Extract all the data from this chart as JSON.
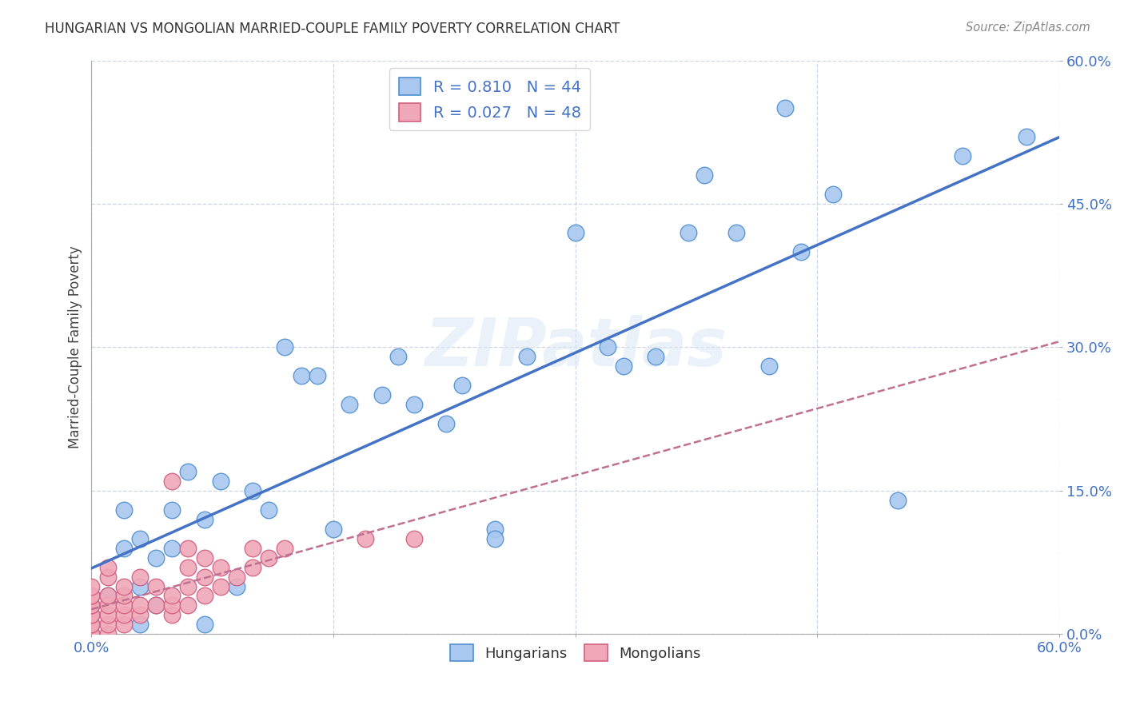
{
  "title": "HUNGARIAN VS MONGOLIAN MARRIED-COUPLE FAMILY POVERTY CORRELATION CHART",
  "source": "Source: ZipAtlas.com",
  "ylabel": "Married-Couple Family Poverty",
  "xlim": [
    0,
    0.6
  ],
  "ylim": [
    0,
    0.6
  ],
  "xtick_vals": [
    0.0,
    0.15,
    0.3,
    0.45,
    0.6
  ],
  "xtick_labels_bottom": [
    "0.0%",
    "",
    "",
    "",
    "60.0%"
  ],
  "ytick_vals": [
    0.0,
    0.15,
    0.3,
    0.45,
    0.6
  ],
  "ytick_labels_right": [
    "0.0%",
    "15.0%",
    "30.0%",
    "45.0%",
    "60.0%"
  ],
  "hungarian_color": "#a8c8f0",
  "mongolian_color": "#f0a8b8",
  "hungarian_edge": "#5090d0",
  "mongolian_edge": "#d06080",
  "line_hungarian_color": "#4472c4",
  "line_mongolian_color": "#c07090",
  "R_hungarian": 0.81,
  "N_hungarian": 44,
  "R_mongolian": 0.027,
  "N_mongolian": 48,
  "watermark": "ZIPatlas",
  "background_color": "#ffffff",
  "hungarian_x": [
    0.01,
    0.02,
    0.02,
    0.03,
    0.03,
    0.04,
    0.04,
    0.05,
    0.05,
    0.06,
    0.07,
    0.08,
    0.09,
    0.1,
    0.11,
    0.12,
    0.13,
    0.14,
    0.15,
    0.16,
    0.18,
    0.19,
    0.2,
    0.22,
    0.23,
    0.25,
    0.25,
    0.27,
    0.3,
    0.32,
    0.33,
    0.35,
    0.37,
    0.38,
    0.4,
    0.42,
    0.43,
    0.44,
    0.46,
    0.5,
    0.54,
    0.58,
    0.03,
    0.07
  ],
  "hungarian_y": [
    0.04,
    0.09,
    0.13,
    0.1,
    0.05,
    0.08,
    0.03,
    0.13,
    0.09,
    0.17,
    0.12,
    0.16,
    0.05,
    0.15,
    0.13,
    0.3,
    0.27,
    0.27,
    0.11,
    0.24,
    0.25,
    0.29,
    0.24,
    0.22,
    0.26,
    0.11,
    0.1,
    0.29,
    0.42,
    0.3,
    0.28,
    0.29,
    0.42,
    0.48,
    0.42,
    0.28,
    0.55,
    0.4,
    0.46,
    0.14,
    0.5,
    0.52,
    0.01,
    0.01
  ],
  "mongolian_x": [
    0.0,
    0.0,
    0.0,
    0.0,
    0.0,
    0.0,
    0.0,
    0.0,
    0.0,
    0.0,
    0.0,
    0.01,
    0.01,
    0.01,
    0.01,
    0.01,
    0.01,
    0.01,
    0.02,
    0.02,
    0.02,
    0.02,
    0.02,
    0.03,
    0.03,
    0.03,
    0.04,
    0.04,
    0.05,
    0.05,
    0.05,
    0.05,
    0.06,
    0.06,
    0.06,
    0.06,
    0.07,
    0.07,
    0.07,
    0.08,
    0.08,
    0.09,
    0.1,
    0.1,
    0.11,
    0.12,
    0.17,
    0.2
  ],
  "mongolian_y": [
    0.0,
    0.0,
    0.01,
    0.01,
    0.02,
    0.02,
    0.03,
    0.03,
    0.04,
    0.04,
    0.05,
    0.0,
    0.01,
    0.02,
    0.03,
    0.04,
    0.06,
    0.07,
    0.01,
    0.02,
    0.03,
    0.04,
    0.05,
    0.02,
    0.03,
    0.06,
    0.03,
    0.05,
    0.02,
    0.03,
    0.04,
    0.16,
    0.03,
    0.05,
    0.07,
    0.09,
    0.04,
    0.06,
    0.08,
    0.05,
    0.07,
    0.06,
    0.07,
    0.09,
    0.08,
    0.09,
    0.1,
    0.1
  ]
}
